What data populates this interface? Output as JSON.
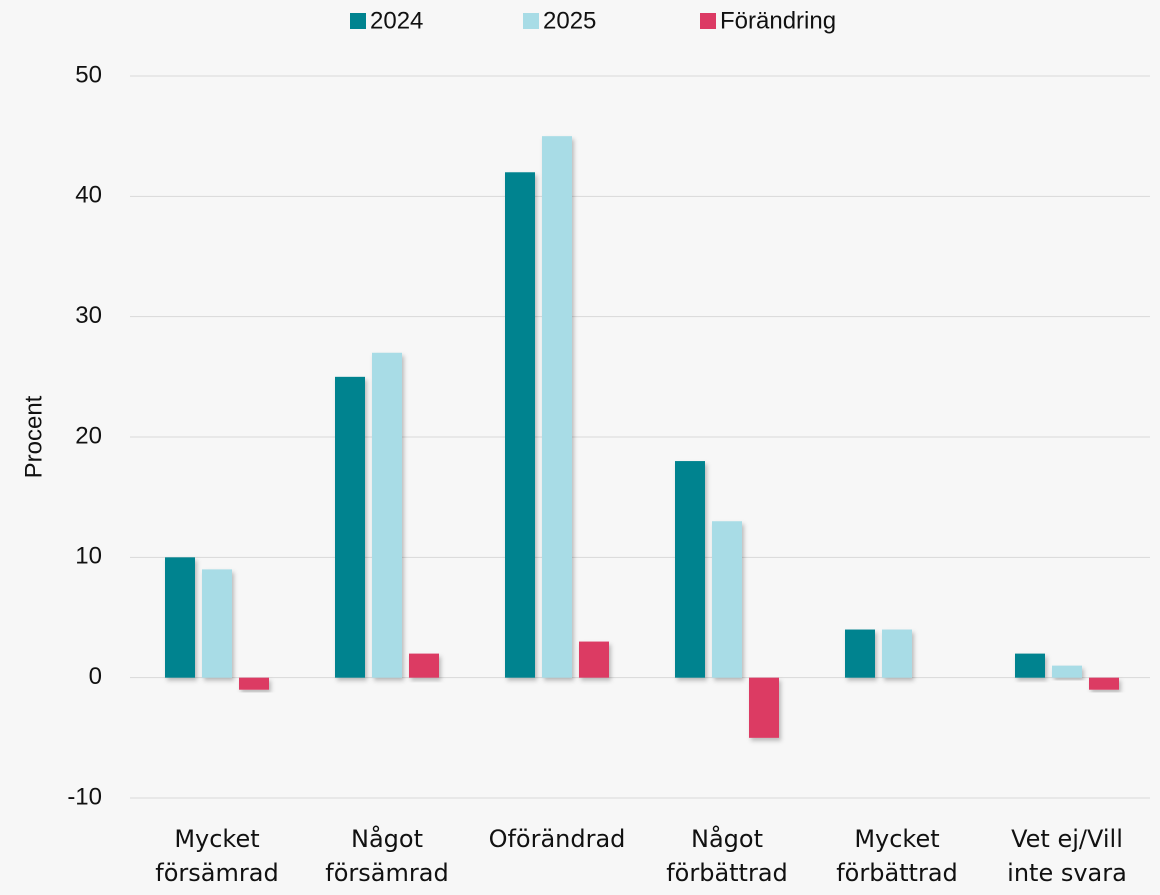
{
  "chart_data": {
    "type": "bar",
    "y_label": "Procent",
    "categories": [
      "Mycket\nförsämrad",
      "Något\nförsämrad",
      "Oförändrad",
      "Något\nförbättrad",
      "Mycket\nförbättrad",
      "Vet ej/Vill\ninte svara"
    ],
    "series": [
      {
        "name": "2024",
        "color": "#00838f",
        "values": [
          10,
          25,
          42,
          18,
          4,
          2
        ]
      },
      {
        "name": "2025",
        "color": "#a8dce6",
        "values": [
          9,
          27,
          45,
          13,
          4,
          1
        ]
      },
      {
        "name": "Förändring",
        "color": "#dc3a64",
        "values": [
          -1,
          2,
          3,
          -5,
          0,
          -1
        ]
      }
    ],
    "ylim": [
      -10,
      50
    ],
    "yticks": [
      -10,
      0,
      10,
      20,
      30,
      40,
      50
    ],
    "grid": true,
    "legend": "top"
  }
}
